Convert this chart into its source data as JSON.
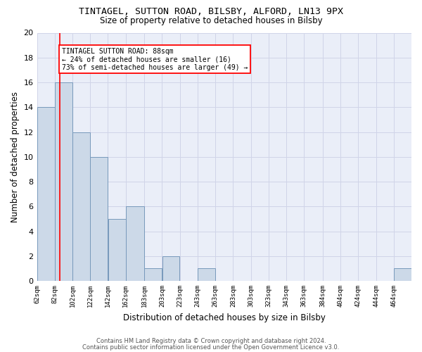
{
  "title1": "TINTAGEL, SUTTON ROAD, BILSBY, ALFORD, LN13 9PX",
  "title2": "Size of property relative to detached houses in Bilsby",
  "xlabel": "Distribution of detached houses by size in Bilsby",
  "ylabel": "Number of detached properties",
  "bin_edges": [
    62,
    82,
    102,
    122,
    142,
    162,
    183,
    203,
    223,
    243,
    263,
    283,
    303,
    323,
    343,
    363,
    384,
    404,
    424,
    444,
    464,
    484
  ],
  "bar_heights": [
    14,
    16,
    12,
    10,
    5,
    6,
    1,
    2,
    0,
    1,
    0,
    0,
    0,
    0,
    0,
    0,
    0,
    0,
    0,
    0,
    1
  ],
  "bar_color": "#ccd9e8",
  "bar_edge_color": "#7799bb",
  "red_line_x": 88,
  "ylim": [
    0,
    20
  ],
  "yticks": [
    0,
    2,
    4,
    6,
    8,
    10,
    12,
    14,
    16,
    18,
    20
  ],
  "annotation_line1": "TINTAGEL SUTTON ROAD: 88sqm",
  "annotation_line2": "← 24% of detached houses are smaller (16)",
  "annotation_line3": "73% of semi-detached houses are larger (49) →",
  "footnote1": "Contains HM Land Registry data © Crown copyright and database right 2024.",
  "footnote2": "Contains public sector information licensed under the Open Government Licence v3.0.",
  "tick_labels": [
    "62sqm",
    "82sqm",
    "102sqm",
    "122sqm",
    "142sqm",
    "162sqm",
    "183sqm",
    "203sqm",
    "223sqm",
    "243sqm",
    "263sqm",
    "283sqm",
    "303sqm",
    "323sqm",
    "343sqm",
    "363sqm",
    "384sqm",
    "404sqm",
    "424sqm",
    "444sqm",
    "464sqm"
  ],
  "grid_color": "#d0d4e8",
  "background_color": "#eaeef8"
}
